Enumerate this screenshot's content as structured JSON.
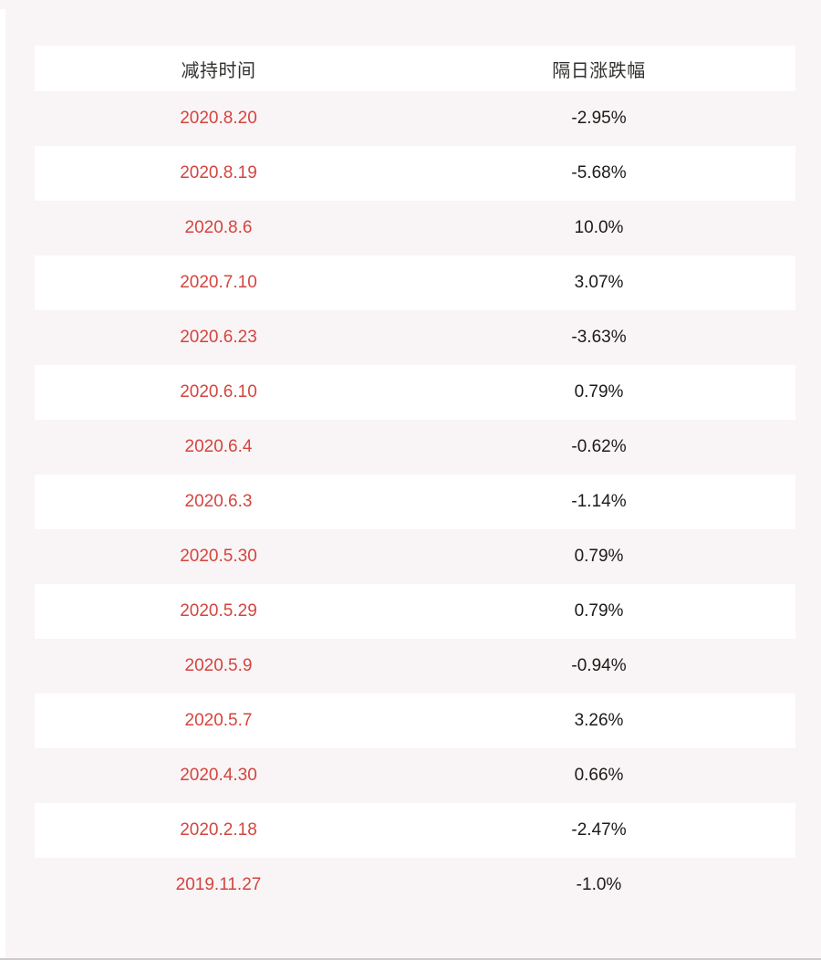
{
  "chart_data": {
    "type": "table",
    "title": "",
    "columns": [
      "减持时间",
      "隔日涨跌幅"
    ],
    "rows": [
      [
        "2020.8.20",
        "-2.95%"
      ],
      [
        "2020.8.19",
        "-5.68%"
      ],
      [
        "2020.8.6",
        "10.0%"
      ],
      [
        "2020.7.10",
        "3.07%"
      ],
      [
        "2020.6.23",
        "-3.63%"
      ],
      [
        "2020.6.10",
        "0.79%"
      ],
      [
        "2020.6.4",
        "-0.62%"
      ],
      [
        "2020.6.3",
        "-1.14%"
      ],
      [
        "2020.5.30",
        "0.79%"
      ],
      [
        "2020.5.29",
        "0.79%"
      ],
      [
        "2020.5.9",
        "-0.94%"
      ],
      [
        "2020.5.7",
        "3.26%"
      ],
      [
        "2020.4.30",
        "0.66%"
      ],
      [
        "2020.2.18",
        "-2.47%"
      ],
      [
        "2019.11.27",
        "-1.0%"
      ]
    ],
    "layout": {
      "header_row_background": "white",
      "row_alternation": [
        "page-pink",
        "white"
      ],
      "column_alignment": [
        "center",
        "center"
      ]
    }
  },
  "theme": {
    "page_background": "#f9f4f5",
    "row_white": "#ffffff",
    "header_text_color": "#32312f",
    "date_text_color": "#d3453f",
    "change_text_color": "#1c1b19",
    "bottom_divider_color": "#cfc9c9"
  }
}
